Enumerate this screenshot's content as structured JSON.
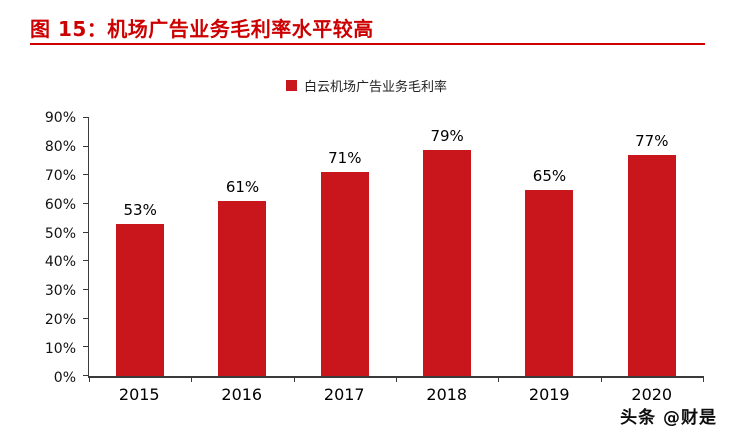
{
  "figure": {
    "title": "图 15：机场广告业务毛利率水平较高",
    "accent_color": "#cc0000"
  },
  "legend": {
    "label": "白云机场广告业务毛利率",
    "swatch_color": "#c9161d"
  },
  "watermark": "头条 @财是",
  "chart_data": {
    "type": "bar",
    "title": "",
    "xlabel": "",
    "ylabel": "",
    "categories": [
      "2015",
      "2016",
      "2017",
      "2018",
      "2019",
      "2020"
    ],
    "values": [
      53,
      61,
      71,
      79,
      65,
      77
    ],
    "value_labels": [
      "53%",
      "61%",
      "71%",
      "79%",
      "65%",
      "77%"
    ],
    "series_name": "白云机场广告业务毛利率",
    "ylim": [
      0,
      90
    ],
    "ytick_step": 10,
    "ytick_labels": [
      "0%",
      "10%",
      "20%",
      "30%",
      "40%",
      "50%",
      "60%",
      "70%",
      "80%",
      "90%"
    ],
    "bar_color": "#c9161d",
    "grid": false,
    "legend_position": "top-center"
  }
}
